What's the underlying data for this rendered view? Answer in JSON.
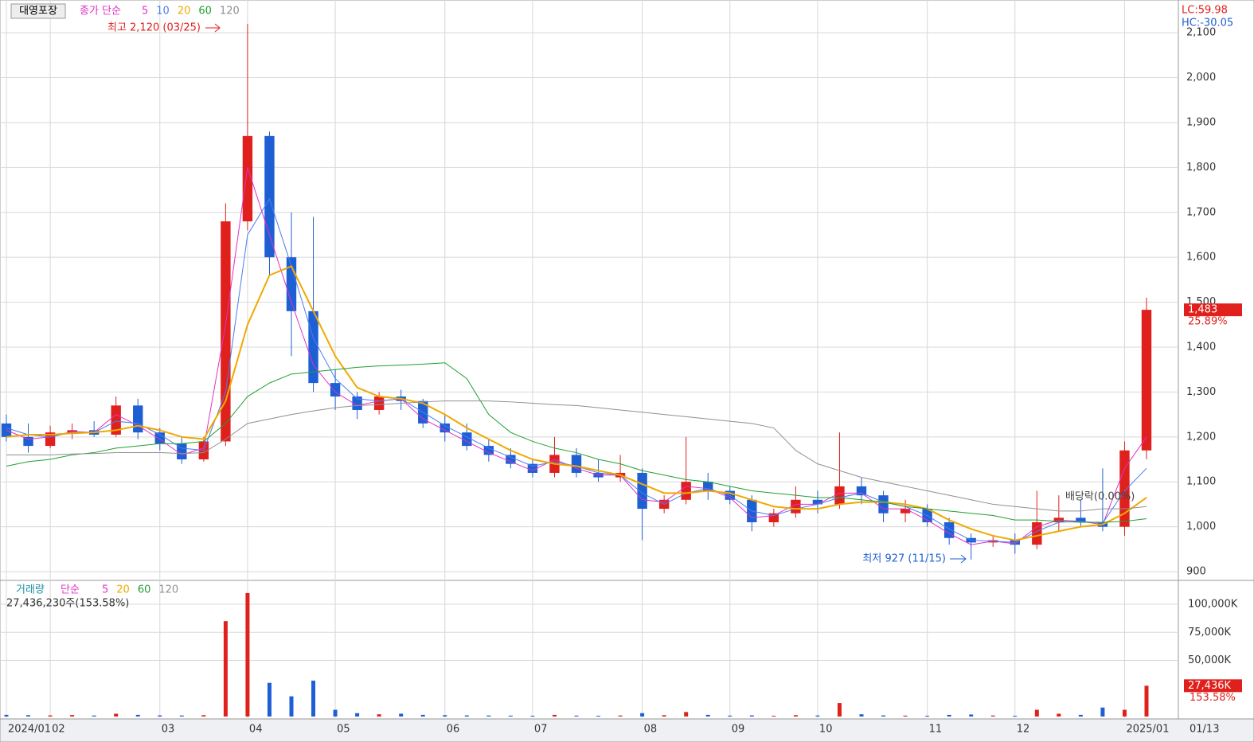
{
  "chart_data": [
    {
      "type": "candlestick",
      "title": "대영포장",
      "legend_title": "종가 단순",
      "up_color": "#e0201c",
      "down_color": "#1f5fd4",
      "categories": [
        "2024/01",
        null,
        "02",
        null,
        null,
        null,
        null,
        "03",
        null,
        null,
        null,
        "04",
        null,
        null,
        null,
        "05",
        null,
        null,
        null,
        null,
        "06",
        null,
        null,
        null,
        "07",
        null,
        null,
        null,
        null,
        "08",
        null,
        null,
        null,
        "09",
        null,
        null,
        null,
        "10",
        null,
        null,
        null,
        null,
        "11",
        null,
        null,
        null,
        "12",
        null,
        null,
        null,
        null,
        "2025/01",
        null
      ],
      "x_end_label": "01/13",
      "candles": {
        "open": [
          1230,
          1200,
          1180,
          1210,
          1215,
          1205,
          1270,
          1210,
          1185,
          1150,
          1190,
          1680,
          1870,
          1600,
          1480,
          1320,
          1290,
          1260,
          1290,
          1280,
          1230,
          1210,
          1180,
          1160,
          1140,
          1120,
          1160,
          1120,
          1110,
          1120,
          1040,
          1060,
          1100,
          1080,
          1060,
          1010,
          1030,
          1060,
          1050,
          1090,
          1070,
          1030,
          1040,
          1010,
          975,
          965,
          970,
          960,
          1010,
          1020,
          1010,
          1000,
          1170
        ],
        "high": [
          1250,
          1230,
          1225,
          1230,
          1235,
          1290,
          1285,
          1220,
          1200,
          1200,
          1720,
          2120,
          1880,
          1700,
          1690,
          1350,
          1300,
          1300,
          1305,
          1285,
          1250,
          1230,
          1195,
          1175,
          1150,
          1200,
          1175,
          1150,
          1160,
          1130,
          1070,
          1200,
          1120,
          1090,
          1070,
          1040,
          1090,
          1080,
          1210,
          1110,
          1080,
          1060,
          1050,
          1020,
          985,
          980,
          985,
          1080,
          1070,
          1060,
          1130,
          1190,
          1510
        ],
        "low": [
          1190,
          1165,
          1175,
          1195,
          1200,
          1200,
          1195,
          1170,
          1140,
          1145,
          1180,
          1660,
          1560,
          1380,
          1300,
          1260,
          1240,
          1250,
          1260,
          1220,
          1190,
          1170,
          1145,
          1130,
          1110,
          1110,
          1110,
          1100,
          1100,
          970,
          1030,
          1050,
          1060,
          1050,
          990,
          1000,
          1020,
          1030,
          1040,
          1050,
          1010,
          1010,
          1000,
          960,
          927,
          955,
          940,
          950,
          990,
          1000,
          990,
          980,
          1150
        ],
        "close": [
          1200,
          1180,
          1210,
          1215,
          1205,
          1270,
          1210,
          1185,
          1150,
          1190,
          1680,
          1870,
          1600,
          1480,
          1320,
          1290,
          1260,
          1290,
          1280,
          1230,
          1210,
          1180,
          1160,
          1140,
          1120,
          1160,
          1120,
          1110,
          1120,
          1040,
          1060,
          1100,
          1080,
          1060,
          1010,
          1030,
          1060,
          1050,
          1090,
          1070,
          1030,
          1040,
          1010,
          975,
          965,
          970,
          960,
          1010,
          1020,
          1010,
          1000,
          1170,
          1483
        ]
      },
      "series": [
        {
          "name": "5",
          "color": "#e030c8",
          "values": [
            1215,
            1195,
            1200,
            1212,
            1210,
            1250,
            1225,
            1195,
            1160,
            1175,
            1450,
            1800,
            1650,
            1500,
            1360,
            1300,
            1270,
            1280,
            1285,
            1240,
            1215,
            1190,
            1165,
            1145,
            1125,
            1150,
            1130,
            1115,
            1115,
            1060,
            1055,
            1090,
            1085,
            1065,
            1020,
            1025,
            1050,
            1050,
            1075,
            1075,
            1040,
            1040,
            1015,
            985,
            960,
            968,
            962,
            1000,
            1015,
            1012,
            1005,
            1130,
            1200
          ]
        },
        {
          "name": "10",
          "color": "#4a7cf0",
          "values": [
            1220,
            1205,
            1200,
            1210,
            1210,
            1235,
            1230,
            1205,
            1175,
            1170,
            1300,
            1650,
            1730,
            1580,
            1420,
            1330,
            1285,
            1280,
            1285,
            1255,
            1225,
            1200,
            1175,
            1155,
            1135,
            1145,
            1135,
            1120,
            1115,
            1075,
            1050,
            1075,
            1085,
            1070,
            1035,
            1025,
            1040,
            1050,
            1065,
            1075,
            1055,
            1045,
            1025,
            995,
            970,
            968,
            965,
            990,
            1010,
            1012,
            1008,
            1080,
            1130
          ]
        },
        {
          "name": "20",
          "color": "#f0a800",
          "values": [
            1200,
            1205,
            1205,
            1208,
            1210,
            1215,
            1225,
            1215,
            1200,
            1195,
            1280,
            1450,
            1560,
            1580,
            1480,
            1380,
            1310,
            1290,
            1285,
            1275,
            1250,
            1220,
            1195,
            1170,
            1150,
            1140,
            1135,
            1125,
            1115,
            1095,
            1075,
            1075,
            1080,
            1075,
            1060,
            1045,
            1040,
            1040,
            1050,
            1055,
            1055,
            1050,
            1040,
            1015,
            995,
            980,
            970,
            980,
            990,
            1000,
            1005,
            1030,
            1065
          ]
        },
        {
          "name": "60",
          "color": "#20a030",
          "values": [
            1135,
            1145,
            1150,
            1160,
            1165,
            1175,
            1180,
            1185,
            1185,
            1190,
            1230,
            1290,
            1320,
            1340,
            1345,
            1350,
            1355,
            1358,
            1360,
            1362,
            1365,
            1330,
            1250,
            1210,
            1190,
            1175,
            1165,
            1150,
            1140,
            1125,
            1115,
            1105,
            1100,
            1090,
            1080,
            1075,
            1070,
            1065,
            1065,
            1060,
            1055,
            1045,
            1040,
            1035,
            1030,
            1025,
            1015,
            1015,
            1012,
            1010,
            1010,
            1012,
            1018
          ]
        },
        {
          "name": "120",
          "color": "#909090",
          "values": [
            1160,
            1160,
            1160,
            1162,
            1163,
            1165,
            1165,
            1165,
            1163,
            1165,
            1195,
            1230,
            1240,
            1250,
            1258,
            1265,
            1270,
            1272,
            1275,
            1278,
            1280,
            1280,
            1280,
            1278,
            1275,
            1272,
            1270,
            1265,
            1260,
            1255,
            1250,
            1245,
            1240,
            1235,
            1230,
            1220,
            1170,
            1140,
            1125,
            1110,
            1100,
            1090,
            1080,
            1070,
            1060,
            1050,
            1045,
            1040,
            1035,
            1035,
            1040,
            1040,
            1045
          ]
        }
      ],
      "ylim": [
        893,
        2164
      ],
      "yticks": [
        900,
        {
          "value": 1000,
          "label": "1,000"
        },
        {
          "value": 1100,
          "label": "1,100"
        },
        {
          "value": 1200,
          "label": "1,200"
        },
        {
          "value": 1300,
          "label": "1,300"
        },
        {
          "value": 1400,
          "label": "1,400"
        },
        {
          "value": 1500,
          "label": "1,500"
        },
        {
          "value": 1600,
          "label": "1,600"
        },
        {
          "value": 1700,
          "label": "1,700"
        },
        {
          "value": 1800,
          "label": "1,800"
        },
        {
          "value": 1900,
          "label": "1,900"
        },
        {
          "value": 2000,
          "label": "2,000"
        },
        {
          "value": 2100,
          "label": "2,100"
        }
      ],
      "grid": true,
      "current": {
        "value": 1483,
        "label": "1,483",
        "change": "25.89%"
      },
      "annotations": {
        "high": "최고 2,120 (03/25)",
        "low": "최저 927 (11/15)",
        "dividend": "배당락(0.00%)",
        "lc": "LC:59.98",
        "hc": "HC:-30.05"
      }
    },
    {
      "type": "bar",
      "title": "거래량",
      "legend_title": "단순",
      "legend_items": [
        {
          "name": "5",
          "color": "#e030c8"
        },
        {
          "name": "20",
          "color": "#f0a800"
        },
        {
          "name": "60",
          "color": "#20a030"
        },
        {
          "name": "120",
          "color": "#909090"
        }
      ],
      "subtitle": "27,436,230주(153.58%)",
      "values": [
        1500,
        1200,
        1000,
        1300,
        900,
        2500,
        1500,
        1000,
        900,
        1200,
        85000,
        110000,
        30000,
        18000,
        32000,
        6000,
        3000,
        2000,
        2500,
        1500,
        1200,
        1000,
        900,
        800,
        700,
        1500,
        800,
        700,
        900,
        3000,
        1200,
        4000,
        1500,
        800,
        1000,
        700,
        1200,
        900,
        12000,
        2000,
        1000,
        800,
        700,
        1500,
        1800,
        900,
        700,
        6000,
        2500,
        1500,
        8000,
        6000,
        27436
      ],
      "ylim": [
        0,
        118440
      ],
      "yticks": [
        {
          "value": 50000,
          "label": "50,000K"
        },
        {
          "value": 75000,
          "label": "75,000K"
        },
        {
          "value": 100000,
          "label": "100,000K"
        }
      ],
      "current": {
        "value": 27436,
        "label": "27,436K",
        "change": "153.58%"
      }
    }
  ]
}
